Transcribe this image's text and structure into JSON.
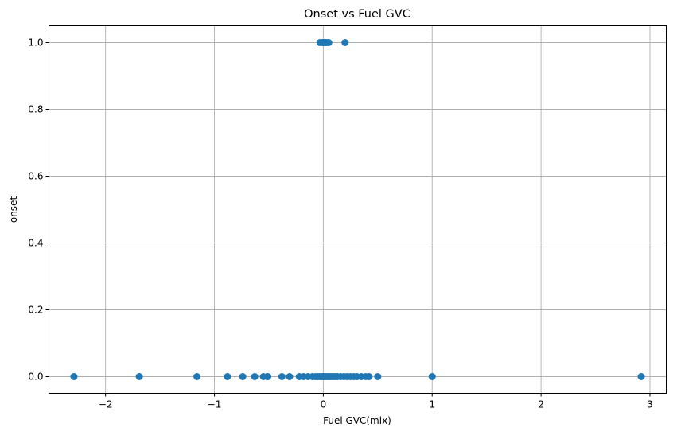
{
  "chart_data": {
    "type": "scatter",
    "title": "Onset vs Fuel GVC",
    "xlabel": "Fuel GVC(mix)",
    "ylabel": "onset",
    "xlim": [
      -2.52,
      3.15
    ],
    "ylim": [
      -0.05,
      1.05
    ],
    "xticks": [
      -2,
      -1,
      0,
      1,
      2,
      3
    ],
    "xtick_labels": [
      "−2",
      "−1",
      "0",
      "1",
      "2",
      "3"
    ],
    "yticks": [
      0.0,
      0.2,
      0.4,
      0.6,
      0.8,
      1.0
    ],
    "ytick_labels": [
      "0.0",
      "0.2",
      "0.4",
      "0.6",
      "0.8",
      "1.0"
    ],
    "grid": true,
    "color": "#1f77b4",
    "points": [
      {
        "x": -2.29,
        "y": 0
      },
      {
        "x": -1.69,
        "y": 0
      },
      {
        "x": -1.16,
        "y": 0
      },
      {
        "x": -0.88,
        "y": 0
      },
      {
        "x": -0.74,
        "y": 0
      },
      {
        "x": -0.63,
        "y": 0
      },
      {
        "x": -0.55,
        "y": 0
      },
      {
        "x": -0.51,
        "y": 0
      },
      {
        "x": -0.38,
        "y": 0
      },
      {
        "x": -0.31,
        "y": 0
      },
      {
        "x": -0.22,
        "y": 0
      },
      {
        "x": -0.18,
        "y": 0
      },
      {
        "x": -0.14,
        "y": 0
      },
      {
        "x": -0.1,
        "y": 0
      },
      {
        "x": -0.07,
        "y": 0
      },
      {
        "x": -0.05,
        "y": 0
      },
      {
        "x": -0.03,
        "y": 0
      },
      {
        "x": -0.01,
        "y": 0
      },
      {
        "x": 0.0,
        "y": 0
      },
      {
        "x": 0.01,
        "y": 0
      },
      {
        "x": 0.02,
        "y": 0
      },
      {
        "x": 0.04,
        "y": 0
      },
      {
        "x": 0.05,
        "y": 0
      },
      {
        "x": 0.07,
        "y": 0
      },
      {
        "x": 0.09,
        "y": 0
      },
      {
        "x": 0.11,
        "y": 0
      },
      {
        "x": 0.13,
        "y": 0
      },
      {
        "x": 0.16,
        "y": 0
      },
      {
        "x": 0.19,
        "y": 0
      },
      {
        "x": 0.22,
        "y": 0
      },
      {
        "x": 0.25,
        "y": 0
      },
      {
        "x": 0.28,
        "y": 0
      },
      {
        "x": 0.31,
        "y": 0
      },
      {
        "x": 0.35,
        "y": 0
      },
      {
        "x": 0.39,
        "y": 0
      },
      {
        "x": 0.42,
        "y": 0
      },
      {
        "x": 0.5,
        "y": 0
      },
      {
        "x": 1.0,
        "y": 0
      },
      {
        "x": 2.92,
        "y": 0
      },
      {
        "x": -0.03,
        "y": 1
      },
      {
        "x": -0.01,
        "y": 1
      },
      {
        "x": 0.0,
        "y": 1
      },
      {
        "x": 0.01,
        "y": 1
      },
      {
        "x": 0.02,
        "y": 1
      },
      {
        "x": 0.03,
        "y": 1
      },
      {
        "x": 0.05,
        "y": 1
      },
      {
        "x": 0.2,
        "y": 1
      }
    ]
  }
}
